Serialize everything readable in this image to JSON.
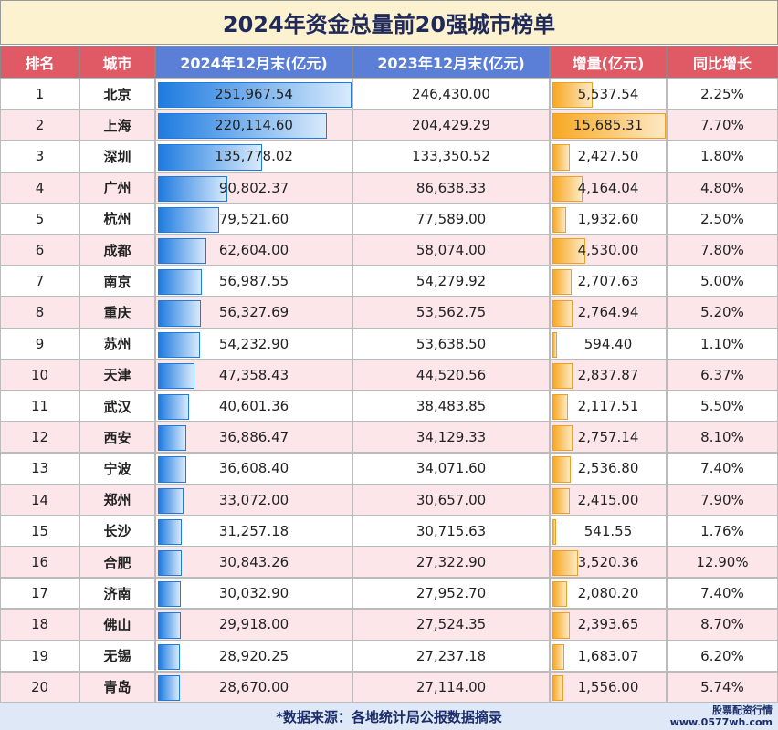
{
  "header": {
    "title": "2024年资金总量前20强城市榜单"
  },
  "table": {
    "columns": [
      "排名",
      "城市",
      "2024年12月末(亿元)",
      "2023年12月末(亿元)",
      "增量(亿元)",
      "同比增长"
    ],
    "rows": [
      [
        "1",
        "北京",
        "251,967.54",
        "246,430.00",
        "5,537.54",
        "2.25%"
      ],
      [
        "2",
        "上海",
        "220,114.60",
        "204,429.29",
        "15,685.31",
        "7.70%"
      ],
      [
        "3",
        "深圳",
        "135,778.02",
        "133,350.52",
        "2,427.50",
        "1.80%"
      ],
      [
        "4",
        "广州",
        "90,802.37",
        "86,638.33",
        "4,164.04",
        "4.80%"
      ],
      [
        "5",
        "杭州",
        "79,521.60",
        "77,589.00",
        "1,932.60",
        "2.50%"
      ],
      [
        "6",
        "成都",
        "62,604.00",
        "58,074.00",
        "4,530.00",
        "7.80%"
      ],
      [
        "7",
        "南京",
        "56,987.55",
        "54,279.92",
        "2,707.63",
        "5.00%"
      ],
      [
        "8",
        "重庆",
        "56,327.69",
        "53,562.75",
        "2,764.94",
        "5.20%"
      ],
      [
        "9",
        "苏州",
        "54,232.90",
        "53,638.50",
        "594.40",
        "1.10%"
      ],
      [
        "10",
        "天津",
        "47,358.43",
        "44,520.56",
        "2,837.87",
        "6.37%"
      ],
      [
        "11",
        "武汉",
        "40,601.36",
        "38,483.85",
        "2,117.51",
        "5.50%"
      ],
      [
        "12",
        "西安",
        "36,886.47",
        "34,129.33",
        "2,757.14",
        "8.10%"
      ],
      [
        "13",
        "宁波",
        "36,608.40",
        "34,071.60",
        "2,536.80",
        "7.40%"
      ],
      [
        "14",
        "郑州",
        "33,072.00",
        "30,657.00",
        "2,415.00",
        "7.90%"
      ],
      [
        "15",
        "长沙",
        "31,257.18",
        "30,715.63",
        "541.55",
        "1.76%"
      ],
      [
        "16",
        "合肥",
        "30,843.26",
        "27,322.90",
        "3,520.36",
        "12.90%"
      ],
      [
        "17",
        "济南",
        "30,032.90",
        "27,952.70",
        "2,080.20",
        "7.40%"
      ],
      [
        "18",
        "佛山",
        "29,918.00",
        "27,524.35",
        "2,393.65",
        "8.70%"
      ],
      [
        "19",
        "无锡",
        "28,920.25",
        "27,237.18",
        "1,683.07",
        "6.20%"
      ],
      [
        "20",
        "青岛",
        "28,670.00",
        "27,114.00",
        "1,556.00",
        "5.74%"
      ]
    ]
  },
  "footer": {
    "source": "*数据来源：各地统计局公报数据摘录",
    "logo": "股票配资行情",
    "site": "www.0577wh.com"
  }
}
